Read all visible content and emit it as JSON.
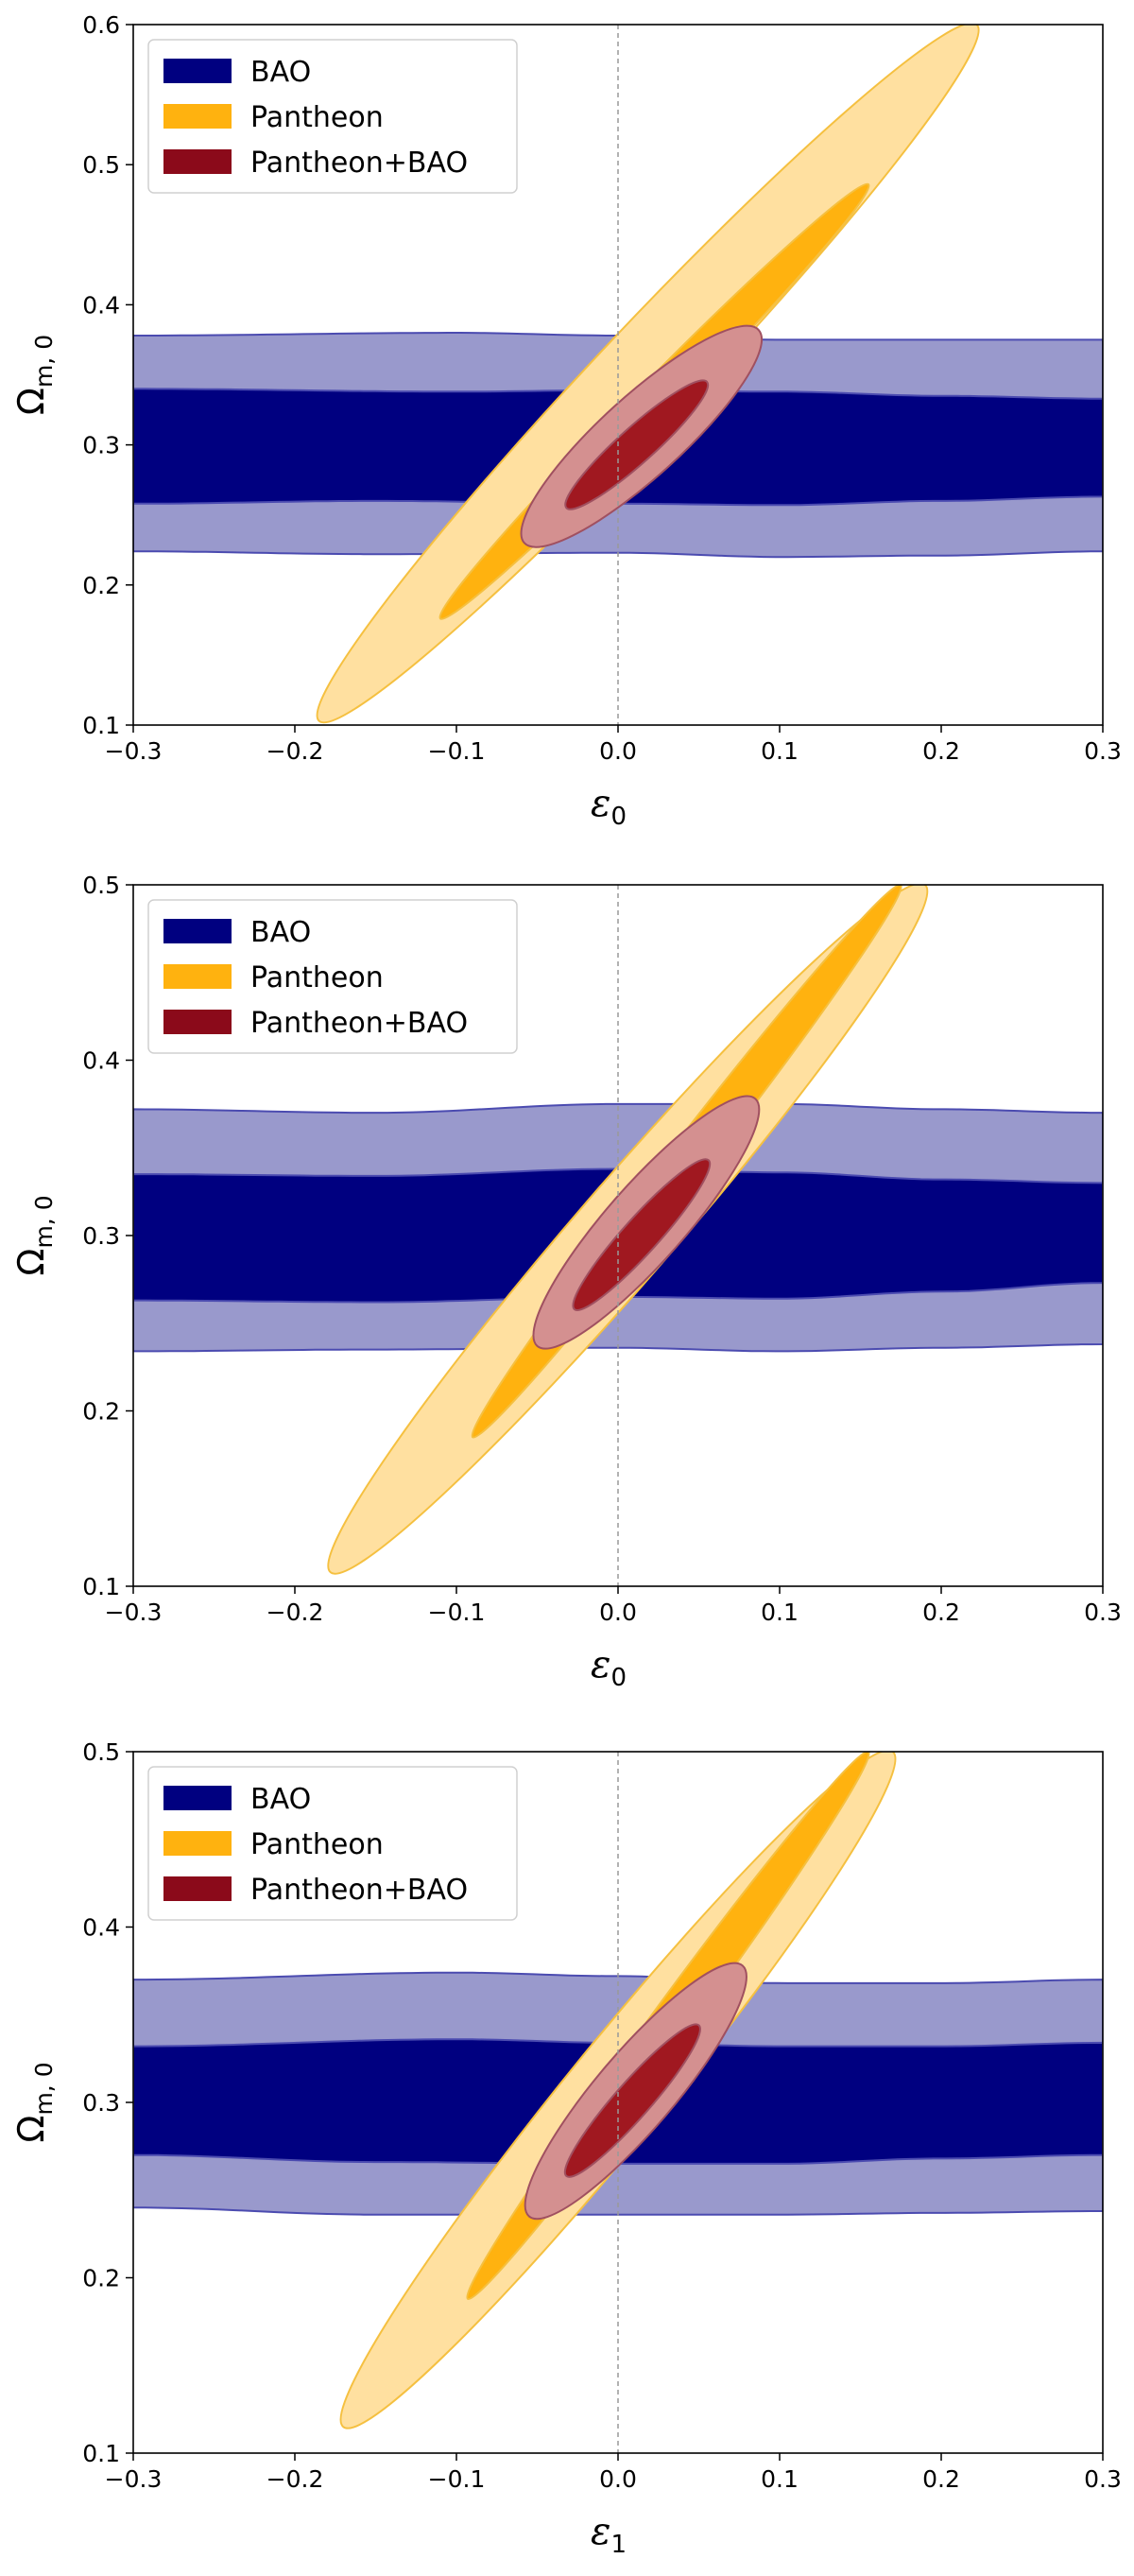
{
  "figure": {
    "description_domain": "contour-plot"
  },
  "colors": {
    "bao_inner": "#000080",
    "bao_outer": "#9999cc",
    "bao_edge": "#4b4bb0",
    "pantheon_inner": "#ffb20f",
    "pantheon_outer": "#ffe0a0",
    "pantheon_edge": "#f5c040",
    "combined_inner": "#a01820",
    "combined_outer": "#d49090",
    "combined_edge": "#a05060",
    "legend_bao": "#000080",
    "legend_pantheon": "#ffb20f",
    "legend_combined": "#8b0a1a",
    "zero_line": "#999999"
  },
  "chart_data": [
    {
      "type": "contour",
      "panel": "top",
      "xlabel": "ε",
      "xlabel_sub": "0",
      "ylabel": "Ω",
      "ylabel_sub": "m, 0",
      "xlim": [
        -0.3,
        0.3
      ],
      "ylim": [
        0.1,
        0.6
      ],
      "xticks": [
        "−0.3",
        "−0.2",
        "−0.1",
        "0.0",
        "0.1",
        "0.2",
        "0.3"
      ],
      "xtick_values": [
        -0.3,
        -0.2,
        -0.1,
        0.0,
        0.1,
        0.2,
        0.3
      ],
      "yticks": [
        "0.1",
        "0.2",
        "0.3",
        "0.4",
        "0.5",
        "0.6"
      ],
      "ytick_values": [
        0.1,
        0.2,
        0.3,
        0.4,
        0.5,
        0.6
      ],
      "legend": [
        "BAO",
        "Pantheon",
        "Pantheon+BAO"
      ],
      "legend_position": "top-left",
      "vline_x": 0.0,
      "series": [
        {
          "name": "BAO",
          "level": "2sigma",
          "type": "band",
          "lower": [
            [
              -0.3,
              0.224
            ],
            [
              -0.15,
              0.222
            ],
            [
              0.0,
              0.223
            ],
            [
              0.1,
              0.22
            ],
            [
              0.2,
              0.221
            ],
            [
              0.3,
              0.224
            ]
          ],
          "upper": [
            [
              -0.3,
              0.378
            ],
            [
              -0.1,
              0.38
            ],
            [
              0.0,
              0.378
            ],
            [
              0.1,
              0.375
            ],
            [
              0.2,
              0.375
            ],
            [
              0.3,
              0.375
            ]
          ]
        },
        {
          "name": "BAO",
          "level": "1sigma",
          "type": "band",
          "lower": [
            [
              -0.3,
              0.258
            ],
            [
              -0.15,
              0.26
            ],
            [
              0.0,
              0.258
            ],
            [
              0.1,
              0.257
            ],
            [
              0.2,
              0.26
            ],
            [
              0.3,
              0.263
            ]
          ],
          "upper": [
            [
              -0.3,
              0.34
            ],
            [
              -0.1,
              0.338
            ],
            [
              0.0,
              0.339
            ],
            [
              0.1,
              0.338
            ],
            [
              0.2,
              0.335
            ],
            [
              0.3,
              0.333
            ]
          ]
        },
        {
          "name": "Pantheon",
          "level": "2sigma",
          "type": "ellipse",
          "center": [
            0.02,
            0.35
          ],
          "axis_start": [
            -0.185,
            0.103
          ],
          "axis_end": [
            0.222,
            0.6
          ],
          "half_width": 0.03
        },
        {
          "name": "Pantheon",
          "level": "1sigma",
          "type": "ellipse",
          "center": [
            0.023,
            0.33
          ],
          "axis_start": [
            -0.11,
            0.176
          ],
          "axis_end": [
            0.155,
            0.486
          ],
          "half_width": 0.012
        },
        {
          "name": "Pantheon+BAO",
          "level": "2sigma",
          "type": "ellipse",
          "center": [
            0.017,
            0.305
          ],
          "axis_start": [
            -0.058,
            0.23
          ],
          "axis_end": [
            0.087,
            0.382
          ],
          "half_width": 0.025
        },
        {
          "name": "Pantheon+BAO",
          "level": "1sigma",
          "type": "ellipse",
          "center": [
            0.012,
            0.298
          ],
          "axis_start": [
            -0.032,
            0.255
          ],
          "axis_end": [
            0.055,
            0.345
          ],
          "half_width": 0.011
        }
      ]
    },
    {
      "type": "contour",
      "panel": "middle",
      "xlabel": "ε",
      "xlabel_sub": "0",
      "ylabel": "Ω",
      "ylabel_sub": "m, 0",
      "xlim": [
        -0.3,
        0.3
      ],
      "ylim": [
        0.1,
        0.5
      ],
      "xticks": [
        "−0.3",
        "−0.2",
        "−0.1",
        "0.0",
        "0.1",
        "0.2",
        "0.3"
      ],
      "xtick_values": [
        -0.3,
        -0.2,
        -0.1,
        0.0,
        0.1,
        0.2,
        0.3
      ],
      "yticks": [
        "0.1",
        "0.2",
        "0.3",
        "0.4",
        "0.5"
      ],
      "ytick_values": [
        0.1,
        0.2,
        0.3,
        0.4,
        0.5
      ],
      "legend": [
        "BAO",
        "Pantheon",
        "Pantheon+BAO"
      ],
      "legend_position": "top-left",
      "vline_x": 0.0,
      "series": [
        {
          "name": "BAO",
          "level": "2sigma",
          "type": "band",
          "lower": [
            [
              -0.3,
              0.234
            ],
            [
              -0.15,
              0.235
            ],
            [
              0.0,
              0.236
            ],
            [
              0.1,
              0.234
            ],
            [
              0.2,
              0.236
            ],
            [
              0.3,
              0.238
            ]
          ],
          "upper": [
            [
              -0.3,
              0.372
            ],
            [
              -0.15,
              0.37
            ],
            [
              0.0,
              0.375
            ],
            [
              0.1,
              0.375
            ],
            [
              0.2,
              0.372
            ],
            [
              0.3,
              0.37
            ]
          ]
        },
        {
          "name": "BAO",
          "level": "1sigma",
          "type": "band",
          "lower": [
            [
              -0.3,
              0.263
            ],
            [
              -0.15,
              0.262
            ],
            [
              0.0,
              0.265
            ],
            [
              0.1,
              0.264
            ],
            [
              0.2,
              0.268
            ],
            [
              0.3,
              0.273
            ]
          ],
          "upper": [
            [
              -0.3,
              0.335
            ],
            [
              -0.15,
              0.334
            ],
            [
              0.0,
              0.338
            ],
            [
              0.1,
              0.336
            ],
            [
              0.2,
              0.332
            ],
            [
              0.3,
              0.33
            ]
          ]
        },
        {
          "name": "Pantheon",
          "level": "2sigma",
          "type": "ellipse",
          "center": [
            0.0,
            0.3
          ],
          "axis_start": [
            -0.178,
            0.108
          ],
          "axis_end": [
            0.19,
            0.5
          ],
          "half_width": 0.03
        },
        {
          "name": "Pantheon",
          "level": "1sigma",
          "type": "ellipse",
          "center": [
            0.04,
            0.34
          ],
          "axis_start": [
            -0.09,
            0.185
          ],
          "axis_end": [
            0.175,
            0.5
          ],
          "half_width": 0.012
        },
        {
          "name": "Pantheon+BAO",
          "level": "2sigma",
          "type": "ellipse",
          "center": [
            0.018,
            0.308
          ],
          "axis_start": [
            -0.05,
            0.237
          ],
          "axis_end": [
            0.085,
            0.378
          ],
          "half_width": 0.024
        },
        {
          "name": "Pantheon+BAO",
          "level": "1sigma",
          "type": "ellipse",
          "center": [
            0.018,
            0.3
          ],
          "axis_start": [
            -0.027,
            0.258
          ],
          "axis_end": [
            0.056,
            0.343
          ],
          "half_width": 0.011
        }
      ]
    },
    {
      "type": "contour",
      "panel": "bottom",
      "xlabel": "ε",
      "xlabel_sub": "1",
      "ylabel": "Ω",
      "ylabel_sub": "m, 0",
      "xlim": [
        -0.3,
        0.3
      ],
      "ylim": [
        0.1,
        0.5
      ],
      "xticks": [
        "−0.3",
        "−0.2",
        "−0.1",
        "0.0",
        "0.1",
        "0.2",
        "0.3"
      ],
      "xtick_values": [
        -0.3,
        -0.2,
        -0.1,
        0.0,
        0.1,
        0.2,
        0.3
      ],
      "yticks": [
        "0.1",
        "0.2",
        "0.3",
        "0.4",
        "0.5"
      ],
      "ytick_values": [
        0.1,
        0.2,
        0.3,
        0.4,
        0.5
      ],
      "legend": [
        "BAO",
        "Pantheon",
        "Pantheon+BAO"
      ],
      "legend_position": "top-left",
      "vline_x": 0.0,
      "series": [
        {
          "name": "BAO",
          "level": "2sigma",
          "type": "band",
          "lower": [
            [
              -0.3,
              0.24
            ],
            [
              -0.15,
              0.236
            ],
            [
              0.0,
              0.236
            ],
            [
              0.1,
              0.236
            ],
            [
              0.2,
              0.237
            ],
            [
              0.3,
              0.238
            ]
          ],
          "upper": [
            [
              -0.3,
              0.37
            ],
            [
              -0.1,
              0.374
            ],
            [
              0.0,
              0.372
            ],
            [
              0.1,
              0.368
            ],
            [
              0.2,
              0.368
            ],
            [
              0.3,
              0.37
            ]
          ]
        },
        {
          "name": "BAO",
          "level": "1sigma",
          "type": "band",
          "lower": [
            [
              -0.3,
              0.27
            ],
            [
              -0.15,
              0.266
            ],
            [
              0.0,
              0.265
            ],
            [
              0.1,
              0.265
            ],
            [
              0.2,
              0.268
            ],
            [
              0.3,
              0.27
            ]
          ],
          "upper": [
            [
              -0.3,
              0.332
            ],
            [
              -0.1,
              0.336
            ],
            [
              0.0,
              0.334
            ],
            [
              0.1,
              0.332
            ],
            [
              0.2,
              0.332
            ],
            [
              0.3,
              0.334
            ]
          ]
        },
        {
          "name": "Pantheon",
          "level": "2sigma",
          "type": "ellipse",
          "center": [
            0.0,
            0.31
          ],
          "axis_start": [
            -0.17,
            0.115
          ],
          "axis_end": [
            0.17,
            0.5
          ],
          "half_width": 0.03
        },
        {
          "name": "Pantheon",
          "level": "1sigma",
          "type": "ellipse",
          "center": [
            0.03,
            0.34
          ],
          "axis_start": [
            -0.093,
            0.188
          ],
          "axis_end": [
            0.155,
            0.5
          ],
          "half_width": 0.012
        },
        {
          "name": "Pantheon+BAO",
          "level": "2sigma",
          "type": "ellipse",
          "center": [
            0.013,
            0.306
          ],
          "axis_start": [
            -0.055,
            0.235
          ],
          "axis_end": [
            0.077,
            0.378
          ],
          "half_width": 0.024
        },
        {
          "name": "Pantheon+BAO",
          "level": "1sigma",
          "type": "ellipse",
          "center": [
            0.01,
            0.3
          ],
          "axis_start": [
            -0.032,
            0.258
          ],
          "axis_end": [
            0.05,
            0.344
          ],
          "half_width": 0.011
        }
      ]
    }
  ]
}
